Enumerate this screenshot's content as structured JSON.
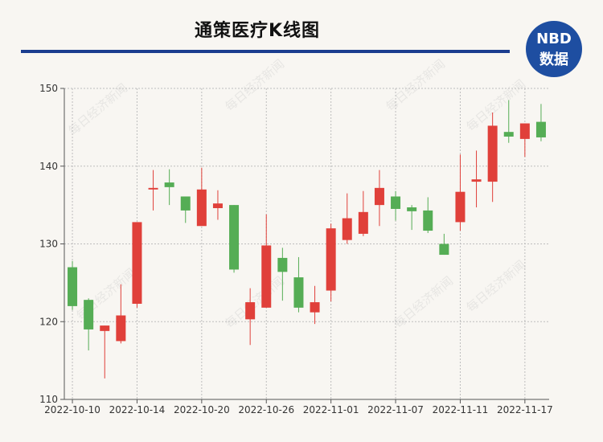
{
  "header": {
    "title": "通策医疗K线图",
    "logo_line1": "NBD",
    "logo_line2": "数据",
    "watermark": "每日经济新闻"
  },
  "chart_data": {
    "type": "candlestick",
    "title": "通策医疗K线图",
    "ylim": [
      110,
      150
    ],
    "yticks": [
      110,
      120,
      130,
      140,
      150
    ],
    "xtick_labels": [
      {
        "index": 0,
        "label": "2022-10-10"
      },
      {
        "index": 4,
        "label": "2022-10-14"
      },
      {
        "index": 8,
        "label": "2022-10-20"
      },
      {
        "index": 12,
        "label": "2022-10-26"
      },
      {
        "index": 16,
        "label": "2022-11-01"
      },
      {
        "index": 20,
        "label": "2022-11-07"
      },
      {
        "index": 24,
        "label": "2022-11-11"
      },
      {
        "index": 28,
        "label": "2022-11-17"
      }
    ],
    "grid": true,
    "colors": {
      "up": "#e0403a",
      "down": "#55ad55"
    },
    "candles": [
      {
        "open": 127.0,
        "close": 122.0,
        "high": 127.8,
        "low": 121.5
      },
      {
        "open": 122.8,
        "close": 119.0,
        "high": 123.0,
        "low": 116.3
      },
      {
        "open": 118.8,
        "close": 119.5,
        "high": 119.5,
        "low": 112.7
      },
      {
        "open": 117.5,
        "close": 120.8,
        "high": 124.8,
        "low": 117.2
      },
      {
        "open": 122.3,
        "close": 132.8,
        "high": 132.8,
        "low": 121.8
      },
      {
        "open": 137.0,
        "close": 137.2,
        "high": 139.5,
        "low": 134.3
      },
      {
        "open": 137.9,
        "close": 137.3,
        "high": 139.6,
        "low": 135.0
      },
      {
        "open": 136.1,
        "close": 134.3,
        "high": 136.1,
        "low": 132.7
      },
      {
        "open": 132.3,
        "close": 137.0,
        "high": 139.8,
        "low": 132.3
      },
      {
        "open": 134.6,
        "close": 135.2,
        "high": 136.9,
        "low": 133.1
      },
      {
        "open": 135.0,
        "close": 126.7,
        "high": 135.0,
        "low": 126.3
      },
      {
        "open": 120.3,
        "close": 122.5,
        "high": 124.3,
        "low": 117.0
      },
      {
        "open": 121.8,
        "close": 129.8,
        "high": 133.8,
        "low": 121.8
      },
      {
        "open": 128.2,
        "close": 126.4,
        "high": 129.5,
        "low": 122.7
      },
      {
        "open": 125.7,
        "close": 121.8,
        "high": 128.3,
        "low": 121.2
      },
      {
        "open": 121.2,
        "close": 122.5,
        "high": 124.6,
        "low": 119.7
      },
      {
        "open": 124.0,
        "close": 132.0,
        "high": 132.6,
        "low": 122.6
      },
      {
        "open": 130.5,
        "close": 133.3,
        "high": 136.5,
        "low": 130.0
      },
      {
        "open": 131.3,
        "close": 134.1,
        "high": 136.8,
        "low": 131.0
      },
      {
        "open": 135.0,
        "close": 137.2,
        "high": 139.5,
        "low": 132.3
      },
      {
        "open": 136.1,
        "close": 134.5,
        "high": 136.8,
        "low": 133.0
      },
      {
        "open": 134.7,
        "close": 134.2,
        "high": 135.0,
        "low": 131.8
      },
      {
        "open": 134.3,
        "close": 131.7,
        "high": 136.0,
        "low": 131.4
      },
      {
        "open": 130.0,
        "close": 128.6,
        "high": 131.3,
        "low": 128.6
      },
      {
        "open": 132.8,
        "close": 136.7,
        "high": 141.5,
        "low": 131.7
      },
      {
        "open": 138.0,
        "close": 138.3,
        "high": 142.0,
        "low": 134.7
      },
      {
        "open": 138.0,
        "close": 145.2,
        "high": 146.9,
        "low": 135.4
      },
      {
        "open": 144.4,
        "close": 143.8,
        "high": 148.5,
        "low": 143.0
      },
      {
        "open": 143.5,
        "close": 145.5,
        "high": 145.5,
        "low": 141.2
      },
      {
        "open": 145.7,
        "close": 143.7,
        "high": 148.0,
        "low": 143.2
      }
    ]
  }
}
